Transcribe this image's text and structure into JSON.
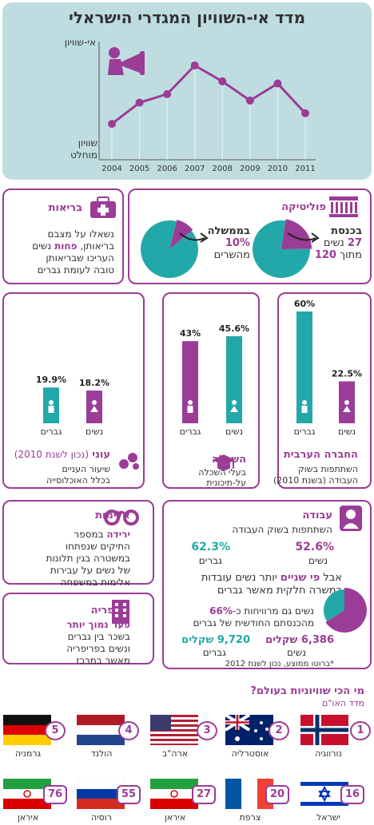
{
  "header": {
    "title": "מדד אי-השוויון המגדרי הישראלי",
    "y_top_label": "אי-שוויון",
    "y_bottom_label_1": "שוויון",
    "y_bottom_label_2": "מוחלט"
  },
  "chart_data": [
    {
      "type": "line",
      "title": "מדד אי-השוויון המגדרי הישראלי",
      "x": [
        "2004",
        "2005",
        "2006",
        "2007",
        "2008",
        "2009",
        "2010",
        "2011"
      ],
      "values": [
        0.3,
        0.5,
        0.58,
        0.85,
        0.7,
        0.52,
        0.68,
        0.4
      ],
      "ylabel_top": "אי-שוויון",
      "ylabel_bottom": "שוויון מוחלט",
      "color": "#9b3c97"
    },
    {
      "type": "pie",
      "title": "בכנסת",
      "values": [
        27,
        93
      ],
      "colors": [
        "#9b3c97",
        "#23a8a9"
      ]
    },
    {
      "type": "pie",
      "title": "בממשלה",
      "values": [
        10,
        90
      ],
      "colors": [
        "#9b3c97",
        "#23a8a9"
      ]
    },
    {
      "type": "bar",
      "title": "החברה הערבית",
      "categories": [
        "נשים",
        "גברים"
      ],
      "values": [
        22.5,
        60
      ],
      "labels": [
        "22.5%",
        "60%"
      ],
      "colors": [
        "#9b3c97",
        "#23a8a9"
      ]
    },
    {
      "type": "bar",
      "title": "השכלה",
      "categories": [
        "נשים",
        "גברים"
      ],
      "values": [
        45.6,
        43
      ],
      "labels": [
        "45.6%",
        "43%"
      ],
      "colors": [
        "#23a8a9",
        "#9b3c97"
      ]
    },
    {
      "type": "bar",
      "title": "עוני",
      "categories": [
        "נשים",
        "גברים"
      ],
      "values": [
        18.2,
        19.9
      ],
      "labels": [
        "18.2%",
        "19.9%"
      ],
      "colors": [
        "#9b3c97",
        "#23a8a9"
      ]
    },
    {
      "type": "pie",
      "title": "עבודה",
      "values": [
        66,
        34
      ],
      "colors": [
        "#9b3c97",
        "#23a8a9"
      ]
    }
  ],
  "politics": {
    "heading": "פוליטיקה",
    "knesset_label": "בכנסת",
    "knesset_line2_num": "27",
    "knesset_line2_text": "נשים",
    "knesset_line3_text": "מתוך",
    "knesset_line3_num": "120",
    "gov_label": "בממשלה",
    "gov_pct": "10%",
    "gov_text": "מהשרים"
  },
  "health": {
    "heading": "בריאות",
    "line1": "נשאלו על מצבם",
    "line2_pre": "בריאותן,",
    "line2_hl": "פחות",
    "line2_post": "נשים",
    "line3": "העריכו שבריאותן",
    "line4": "טובה לעומת גברים"
  },
  "arab": {
    "heading": "החברה הערבית",
    "sub1": "השתתפות בשוק",
    "sub2": "העבודה (בשנת 2010)"
  },
  "education": {
    "heading": "השכלה",
    "sub1": "בעלי השכלה",
    "sub2": "על-תיכונית"
  },
  "poverty": {
    "heading": "עוני",
    "heading_note": "(נכון לשנת 2010)",
    "sub1": "שיעור העניים",
    "sub2": "בכלל האוכלוסייה"
  },
  "bars_labels": {
    "women": "נשים",
    "men": "גברים"
  },
  "violence": {
    "heading": "אלימות",
    "line1_hl": "ירידה",
    "line1_post": "במספר",
    "line2": "התיקים שנפתחו",
    "line3": "במשטרה בגין תלונות",
    "line4": "של נשים על עבירות",
    "line5": "אלימות במשפחה"
  },
  "periphery": {
    "heading": "פריפריה",
    "line1": "פער נמוך יותר",
    "line2": "בשכר בין גברים",
    "line3": "ונשים בפריפריה",
    "line4": "מאשר במרכז"
  },
  "work": {
    "heading": "עבודה",
    "sub": "השתתפות בשוק העבודה",
    "women_pct": "52.6%",
    "women_label": "נשים",
    "men_pct": "62.3%",
    "men_label": "גברים",
    "line_a_pre": "אבל",
    "line_a_hl": "פי שניים",
    "line_a_post": "יותר נשים עובדות",
    "line_b": "במשרה חלקית מאשר גברים",
    "line_c_pre": "נשים גם מרוויחות כ-",
    "line_c_hl": "66%",
    "line_d": "מהכנסתם החודשית של גברים",
    "women_salary": "6,386 שקלים",
    "men_salary": "9,720 שקלים",
    "footnote": "*ברוטו ממוצע, נכון לשנת 2012"
  },
  "world": {
    "heading": "מי הכי שוויוניות בעולם?",
    "sub": "מדד האו\"ם",
    "countries": [
      {
        "rank": "1",
        "name": "נורווגיה"
      },
      {
        "rank": "2",
        "name": "אוסטרליה"
      },
      {
        "rank": "3",
        "name": "ארה\"ב"
      },
      {
        "rank": "4",
        "name": "הולנד"
      },
      {
        "rank": "5",
        "name": "גרמניה"
      },
      {
        "rank": "16",
        "name": "ישראל"
      },
      {
        "rank": "20",
        "name": "צרפת"
      },
      {
        "rank": "27",
        "name": "איראן"
      },
      {
        "rank": "55",
        "name": "רוסיה"
      },
      {
        "rank": "76",
        "name": "איראן"
      }
    ]
  },
  "colors": {
    "purple": "#9b3c97",
    "teal": "#23a8a9",
    "header_bg": "#bfdde0"
  }
}
